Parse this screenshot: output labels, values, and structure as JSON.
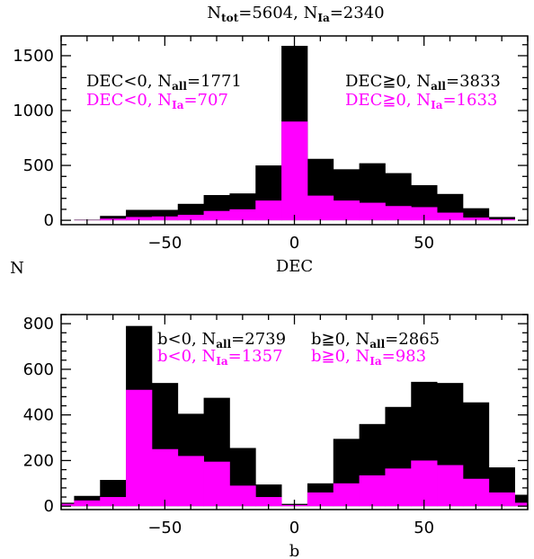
{
  "header": {
    "title_parts": [
      "N",
      "tot",
      "=5604,  N",
      "Ia",
      "=2340"
    ]
  },
  "ylabel": "N",
  "colors": {
    "all": "#000000",
    "ia": "#ff00ff"
  },
  "chart_data": [
    {
      "type": "bar",
      "subtype": "histogram",
      "xlabel": "DEC",
      "xlim": [
        -90,
        90
      ],
      "ylim": [
        -40,
        1680
      ],
      "xticks": [
        -50,
        0,
        50
      ],
      "yticks": [
        0,
        500,
        1000,
        1500
      ],
      "bin_width": 10,
      "bin_edges": [
        -85,
        -75,
        -65,
        -55,
        -45,
        -35,
        -25,
        -15,
        -5,
        5,
        15,
        25,
        35,
        45,
        55,
        65,
        75,
        85
      ],
      "series": [
        {
          "values": [
            5,
            40,
            95,
            95,
            150,
            230,
            245,
            500,
            1590,
            560,
            465,
            520,
            430,
            320,
            240,
            110,
            30
          ],
          "color": "#000000"
        },
        {
          "values": [
            2,
            15,
            30,
            35,
            50,
            85,
            100,
            180,
            900,
            225,
            180,
            160,
            130,
            120,
            70,
            25,
            10
          ],
          "color": "#ff00ff"
        }
      ],
      "annotations": {
        "left_all": [
          "DEC<0,  N",
          "all",
          "=1771"
        ],
        "left_ia": [
          "DEC<0,  N",
          "Ia",
          "=707"
        ],
        "right_all": [
          "DEC≧0,  N",
          "all",
          "=3833"
        ],
        "right_ia": [
          "DEC≧0,  N",
          "Ia",
          "=1633"
        ]
      }
    },
    {
      "type": "bar",
      "subtype": "histogram",
      "xlabel": "b",
      "xlim": [
        -90,
        90
      ],
      "ylim": [
        -15,
        840
      ],
      "xticks": [
        -50,
        0,
        50
      ],
      "yticks": [
        0,
        200,
        400,
        600,
        800
      ],
      "bin_width": 10,
      "bin_edges": [
        -95,
        -85,
        -75,
        -65,
        -55,
        -45,
        -35,
        -25,
        -15,
        -5,
        5,
        15,
        25,
        35,
        45,
        55,
        65,
        75,
        85,
        95
      ],
      "series": [
        {
          "values": [
            15,
            45,
            115,
            790,
            540,
            405,
            475,
            255,
            95,
            10,
            100,
            295,
            360,
            435,
            545,
            540,
            455,
            170,
            50
          ],
          "color": "#000000"
        },
        {
          "values": [
            10,
            25,
            40,
            510,
            250,
            220,
            195,
            90,
            40,
            5,
            60,
            100,
            135,
            165,
            200,
            180,
            120,
            60,
            15
          ],
          "color": "#ff00ff"
        }
      ],
      "annotations": {
        "left_all": [
          "b<0,  N",
          "all",
          "=2739"
        ],
        "left_ia": [
          "b<0,  N",
          "Ia",
          "=1357"
        ],
        "right_all": [
          "b≧0,  N",
          "all",
          "=2865"
        ],
        "right_ia": [
          "b≧0,  N",
          "Ia",
          "=983"
        ]
      }
    }
  ]
}
